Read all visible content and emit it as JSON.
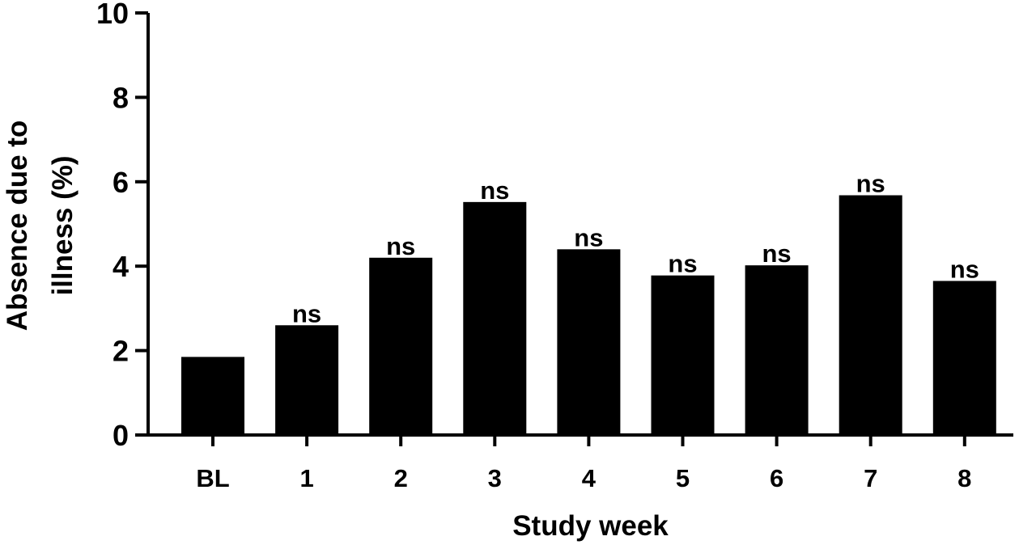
{
  "chart_data": {
    "type": "bar",
    "title": "",
    "xlabel": "Study week",
    "ylabel_lines": [
      "Absence  due to",
      "illness (%)"
    ],
    "ylim": [
      0,
      10
    ],
    "yticks": [
      0,
      2,
      4,
      6,
      8,
      10
    ],
    "ytick_labels": [
      "0",
      "2",
      "4",
      "6",
      "8",
      "10"
    ],
    "categories": [
      "BL",
      "1",
      "2",
      "3",
      "4",
      "5",
      "6",
      "7",
      "8"
    ],
    "values": [
      1.85,
      2.6,
      4.2,
      5.52,
      4.4,
      3.78,
      4.02,
      5.68,
      3.65
    ],
    "annotations": [
      "",
      "ns",
      "ns",
      "ns",
      "ns",
      "ns",
      "ns",
      "ns",
      "ns"
    ],
    "bar_color": "#000000",
    "grid": false,
    "legend": "none"
  }
}
